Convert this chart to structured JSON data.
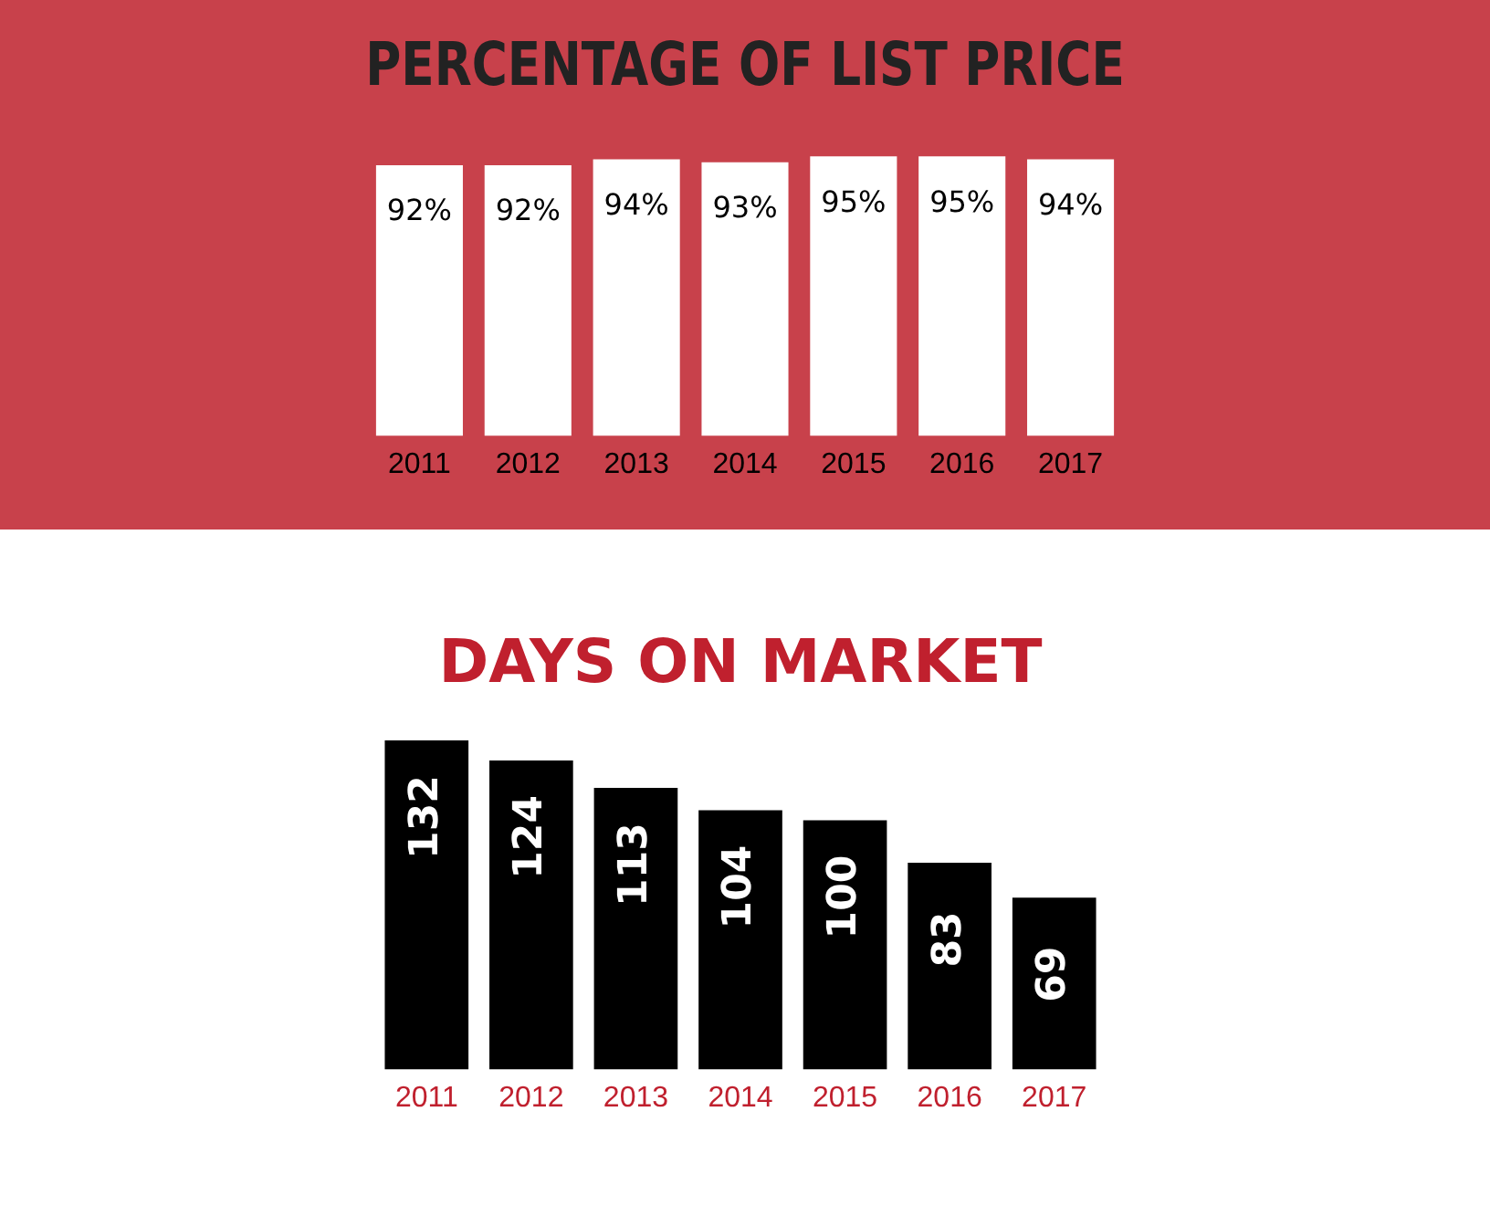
{
  "chart_data": [
    {
      "type": "bar",
      "title": "PERCENTAGE OF LIST PRICE",
      "categories": [
        "2011",
        "2012",
        "2013",
        "2014",
        "2015",
        "2016",
        "2017"
      ],
      "values": [
        92,
        92,
        94,
        93,
        95,
        95,
        94
      ],
      "value_labels": [
        "92%",
        "92%",
        "94%",
        "93%",
        "95%",
        "95%",
        "94%"
      ],
      "color": "#ffffff",
      "grid": false,
      "legend": false,
      "tick_labels": "x"
    },
    {
      "type": "bar",
      "title": "DAYS ON MARKET",
      "categories": [
        "2011",
        "2012",
        "2013",
        "2014",
        "2015",
        "2016",
        "2017"
      ],
      "values": [
        132,
        124,
        113,
        104,
        100,
        83,
        69
      ],
      "data_labels": true,
      "color": "#000000",
      "grid": false,
      "legend": false,
      "tick_labels": "x"
    }
  ]
}
